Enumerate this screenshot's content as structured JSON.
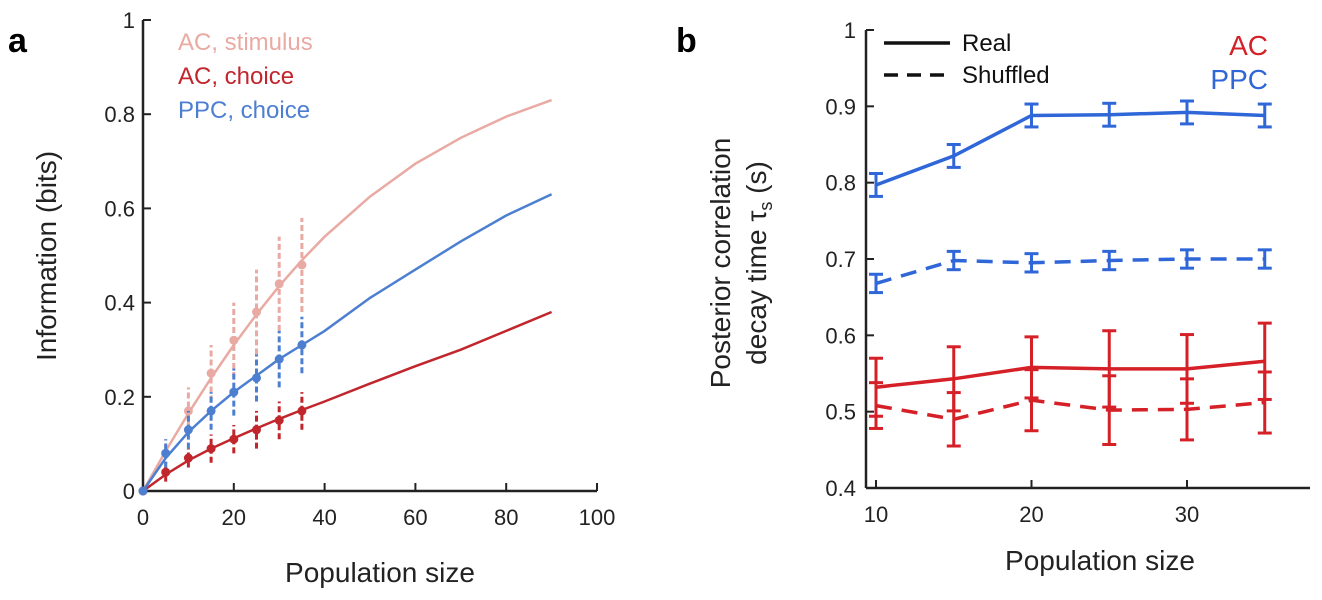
{
  "colors": {
    "ac_stimulus": "#e9aaa3",
    "ac_choice": "#c0262c",
    "ppc_choice": "#4d7fd1",
    "ppc": "#2f66d8",
    "ac": "#d52027",
    "axis": "#222222"
  },
  "chart_data": [
    {
      "panel": "a",
      "type": "line",
      "xlabel": "Population size",
      "ylabel": "Information (bits)",
      "xlim": [
        0,
        100
      ],
      "ylim": [
        0,
        1
      ],
      "xticks": [
        "0",
        "20",
        "40",
        "60",
        "80",
        "100"
      ],
      "yticks": [
        "0",
        "0.2",
        "0.4",
        "0.6",
        "0.8",
        "1"
      ],
      "legend_placement": "top-left",
      "series": [
        {
          "name": "AC, stimulus",
          "color": "#e9aaa3",
          "points_x": [
            0,
            5,
            10,
            15,
            20,
            25,
            30,
            35
          ],
          "points_y": [
            0,
            0.08,
            0.17,
            0.25,
            0.32,
            0.38,
            0.44,
            0.48
          ],
          "errors": [
            0,
            0.03,
            0.05,
            0.06,
            0.08,
            0.09,
            0.1,
            0.1
          ],
          "fit_x": [
            0,
            5,
            10,
            15,
            20,
            25,
            30,
            35,
            40,
            50,
            60,
            70,
            80,
            90
          ],
          "fit_y": [
            0,
            0.085,
            0.165,
            0.24,
            0.31,
            0.375,
            0.435,
            0.49,
            0.54,
            0.625,
            0.695,
            0.75,
            0.795,
            0.83
          ]
        },
        {
          "name": "AC, choice",
          "color": "#c0262c",
          "points_x": [
            0,
            5,
            10,
            15,
            20,
            25,
            30,
            35
          ],
          "points_y": [
            0,
            0.04,
            0.07,
            0.09,
            0.11,
            0.13,
            0.15,
            0.17
          ],
          "errors": [
            0,
            0.02,
            0.02,
            0.03,
            0.03,
            0.04,
            0.04,
            0.04
          ],
          "fit_x": [
            0,
            5,
            10,
            15,
            20,
            25,
            30,
            35,
            40,
            50,
            60,
            70,
            80,
            90
          ],
          "fit_y": [
            0,
            0.035,
            0.065,
            0.09,
            0.112,
            0.133,
            0.153,
            0.172,
            0.19,
            0.228,
            0.265,
            0.3,
            0.34,
            0.38
          ]
        },
        {
          "name": "PPC, choice",
          "color": "#4d7fd1",
          "points_x": [
            0,
            5,
            10,
            15,
            20,
            25,
            30,
            35
          ],
          "points_y": [
            0,
            0.08,
            0.13,
            0.17,
            0.21,
            0.24,
            0.28,
            0.31
          ],
          "errors": [
            0,
            0.03,
            0.04,
            0.04,
            0.05,
            0.05,
            0.06,
            0.06
          ],
          "fit_x": [
            0,
            5,
            10,
            15,
            20,
            25,
            30,
            35,
            40,
            50,
            60,
            70,
            80,
            90
          ],
          "fit_y": [
            0,
            0.07,
            0.125,
            0.17,
            0.21,
            0.245,
            0.28,
            0.31,
            0.34,
            0.41,
            0.47,
            0.53,
            0.585,
            0.63
          ]
        }
      ]
    },
    {
      "panel": "b",
      "type": "line",
      "xlabel": "Population size",
      "ylabel_line1": "Posterior correlation",
      "ylabel_line2": "decay time τ",
      "ylabel_subscript": "s",
      "ylabel_unit": " (s)",
      "xlim": [
        10,
        35
      ],
      "ylim": [
        0.4,
        1
      ],
      "xticks": [
        "10",
        "20",
        "30"
      ],
      "yticks": [
        "0.4",
        "0.5",
        "0.6",
        "0.7",
        "0.8",
        "0.9",
        "1"
      ],
      "legend_placement": "top-left",
      "linestyle_legend": [
        {
          "label": "Real",
          "style": "solid"
        },
        {
          "label": "Shuffled",
          "style": "dashed"
        }
      ],
      "area_legend": [
        {
          "label": "AC",
          "color": "#d52027"
        },
        {
          "label": "PPC",
          "color": "#2f66d8"
        }
      ],
      "series": [
        {
          "area": "PPC",
          "condition": "Real",
          "style": "solid",
          "color": "#2f66d8",
          "x": [
            10,
            15,
            20,
            25,
            30,
            35
          ],
          "y": [
            0.797,
            0.835,
            0.888,
            0.889,
            0.892,
            0.888
          ],
          "err": [
            0.015,
            0.015,
            0.015,
            0.015,
            0.015,
            0.015
          ]
        },
        {
          "area": "PPC",
          "condition": "Shuffled",
          "style": "dashed",
          "color": "#2f66d8",
          "x": [
            10,
            15,
            20,
            25,
            30,
            35
          ],
          "y": [
            0.668,
            0.698,
            0.695,
            0.698,
            0.7,
            0.7
          ],
          "err": [
            0.012,
            0.012,
            0.012,
            0.012,
            0.012,
            0.012
          ]
        },
        {
          "area": "AC",
          "condition": "Real",
          "style": "solid",
          "color": "#d52027",
          "x": [
            10,
            15,
            20,
            25,
            30,
            35
          ],
          "y": [
            0.532,
            0.543,
            0.558,
            0.556,
            0.556,
            0.566
          ],
          "err": [
            0.038,
            0.042,
            0.04,
            0.05,
            0.045,
            0.05
          ]
        },
        {
          "area": "AC",
          "condition": "Shuffled",
          "style": "dashed",
          "color": "#d52027",
          "x": [
            10,
            15,
            20,
            25,
            30,
            35
          ],
          "y": [
            0.508,
            0.49,
            0.515,
            0.502,
            0.503,
            0.512
          ],
          "err": [
            0.03,
            0.035,
            0.04,
            0.045,
            0.04,
            0.04
          ]
        }
      ]
    }
  ]
}
